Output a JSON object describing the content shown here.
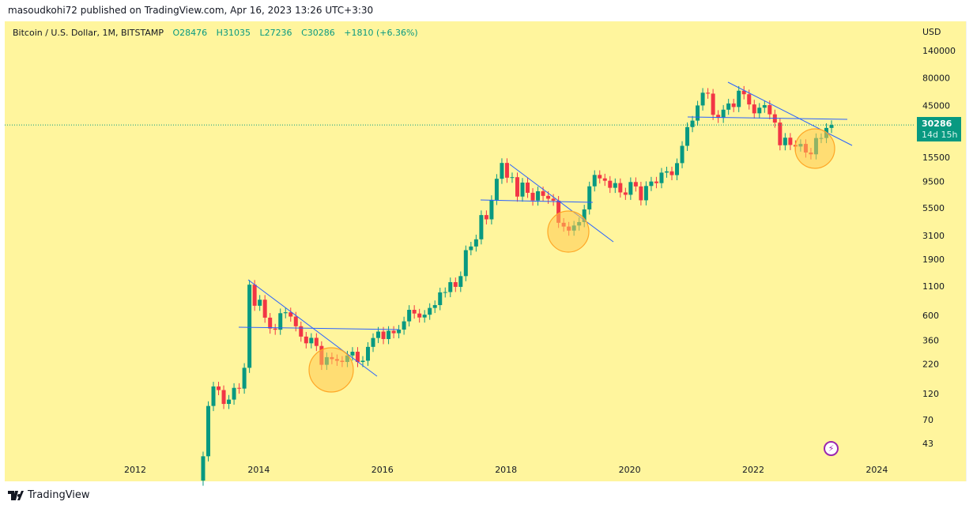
{
  "publisher_line": "masoudkohi72 published on TradingView.com, Apr 16, 2023 13:26 UTC+3:30",
  "legend": {
    "symbol": "Bitcoin / U.S. Dollar, 1M, BITSTAMP",
    "open": "O28476",
    "high": "H31035",
    "low": "L27236",
    "close": "C30286",
    "change": "+1810 (+6.36%)"
  },
  "price_axis": {
    "currency": "USD",
    "ticks": [
      140000,
      80000,
      45000,
      15500,
      9500,
      5500,
      3100,
      1900,
      1100,
      600,
      360,
      220,
      120,
      70,
      43
    ]
  },
  "time_axis": {
    "ticks": [
      "2012",
      "2014",
      "2016",
      "2018",
      "2020",
      "2022",
      "2024"
    ]
  },
  "price_tag": {
    "price": "30286",
    "countdown": "14d 15h"
  },
  "last_price": 30286,
  "footer": {
    "brand": "TradingView"
  },
  "colors": {
    "up": "#089981",
    "down": "#f23645",
    "background": "#fff59d",
    "trendline": "#2962ff",
    "circle": "#ffa726"
  },
  "candles": {
    "start": "2013-02",
    "interval": "1M",
    "first_open": 20,
    "closes": [
      33,
      93,
      139,
      129,
      97,
      106,
      135,
      133,
      204,
      1130,
      732,
      829,
      573,
      458,
      447,
      628,
      640,
      586,
      480,
      388,
      338,
      378,
      320,
      217,
      254,
      244,
      236,
      230,
      263,
      284,
      230,
      236,
      314,
      377,
      430,
      369,
      437,
      416,
      448,
      531,
      673,
      624,
      575,
      609,
      700,
      742,
      964,
      970,
      1190,
      1080,
      1348,
      2300,
      2480,
      2875,
      4735,
      4338,
      6468,
      10000,
      13850,
      10220,
      10330,
      6930,
      9240,
      7490,
      6390,
      7730,
      7030,
      6630,
      6370,
      4040,
      3740,
      3440,
      3820,
      4100,
      5320,
      8560,
      10820,
      10080,
      9600,
      8300,
      9150,
      7550,
      7190,
      9350,
      8540,
      6420,
      8620,
      9450,
      9140,
      11350,
      11650,
      10780,
      13800,
      19700,
      28990,
      33110,
      45240,
      58800,
      57720,
      37300,
      35040,
      41460,
      47130,
      43820,
      61300,
      57000,
      46200,
      38480,
      43190,
      45540,
      37710,
      31790,
      19940,
      23300,
      20050,
      19430,
      20490,
      17170,
      16540,
      23140,
      23140,
      28476,
      30286
    ]
  }
}
